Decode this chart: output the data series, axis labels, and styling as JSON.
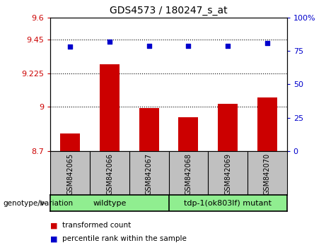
{
  "title": "GDS4573 / 180247_s_at",
  "categories": [
    "GSM842065",
    "GSM842066",
    "GSM842067",
    "GSM842068",
    "GSM842069",
    "GSM842070"
  ],
  "bar_values": [
    8.82,
    9.285,
    8.99,
    8.93,
    9.02,
    9.06
  ],
  "scatter_values": [
    78,
    82,
    79,
    79,
    79,
    81
  ],
  "ylim_left": [
    8.7,
    9.6
  ],
  "ylim_right": [
    0,
    100
  ],
  "yticks_left": [
    8.7,
    9.0,
    9.225,
    9.45,
    9.6
  ],
  "ytick_labels_left": [
    "8.7",
    "9",
    "9.225",
    "9.45",
    "9.6"
  ],
  "yticks_right": [
    0,
    25,
    50,
    75,
    100
  ],
  "ytick_labels_right": [
    "0",
    "25",
    "50",
    "75",
    "100%"
  ],
  "hlines": [
    9.45,
    9.225,
    9.0
  ],
  "bar_color": "#cc0000",
  "scatter_color": "#0000cc",
  "bar_width": 0.5,
  "group_bar_color": "#90ee90",
  "legend_items": [
    {
      "label": "transformed count",
      "color": "#cc0000"
    },
    {
      "label": "percentile rank within the sample",
      "color": "#0000cc"
    }
  ],
  "genotype_label": "genotype/variation",
  "background_color": "#ffffff",
  "plot_bg_color": "#ffffff",
  "tick_label_color_left": "#cc0000",
  "tick_label_color_right": "#0000cc",
  "xlabel_bg": "#c0c0c0",
  "wildtype_label": "wildtype",
  "mutant_label": "tdp-1(ok803lf) mutant"
}
